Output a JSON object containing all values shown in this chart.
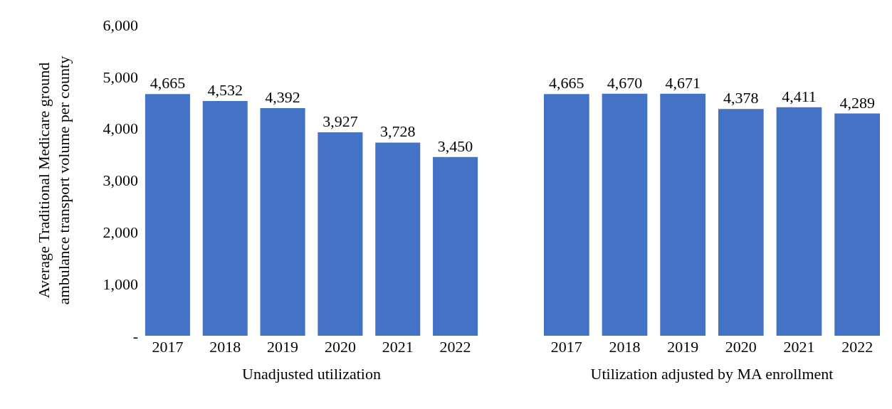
{
  "chart_data": [
    {
      "type": "bar",
      "xlabel": "Unadjusted utilization",
      "ylabel": "Average Traditional Medicare ground ambulance transport volume per county",
      "categories": [
        "2017",
        "2018",
        "2019",
        "2020",
        "2021",
        "2022"
      ],
      "values": [
        4665,
        4532,
        4392,
        3927,
        3728,
        3450
      ],
      "value_labels": [
        "4,665",
        "4,532",
        "4,392",
        "3,927",
        "3,728",
        "3,450"
      ],
      "color": "#4472c4",
      "ylim": [
        0,
        6000
      ],
      "yticks": [
        {
          "value": 0,
          "label": "-"
        },
        {
          "value": 1000,
          "label": "1,000"
        },
        {
          "value": 2000,
          "label": "2,000"
        },
        {
          "value": 3000,
          "label": "3,000"
        },
        {
          "value": 4000,
          "label": "4,000"
        },
        {
          "value": 5000,
          "label": "5,000"
        },
        {
          "value": 6000,
          "label": "6,000"
        }
      ],
      "grid": false
    },
    {
      "type": "bar",
      "xlabel": "Utilization adjusted by MA enrollment",
      "categories": [
        "2017",
        "2018",
        "2019",
        "2020",
        "2021",
        "2022"
      ],
      "values": [
        4665,
        4670,
        4671,
        4378,
        4411,
        4289
      ],
      "value_labels": [
        "4,665",
        "4,670",
        "4,671",
        "4,378",
        "4,411",
        "4,289"
      ],
      "color": "#4472c4",
      "ylim": [
        0,
        6000
      ],
      "tick_labels": "x",
      "grid": false
    }
  ]
}
